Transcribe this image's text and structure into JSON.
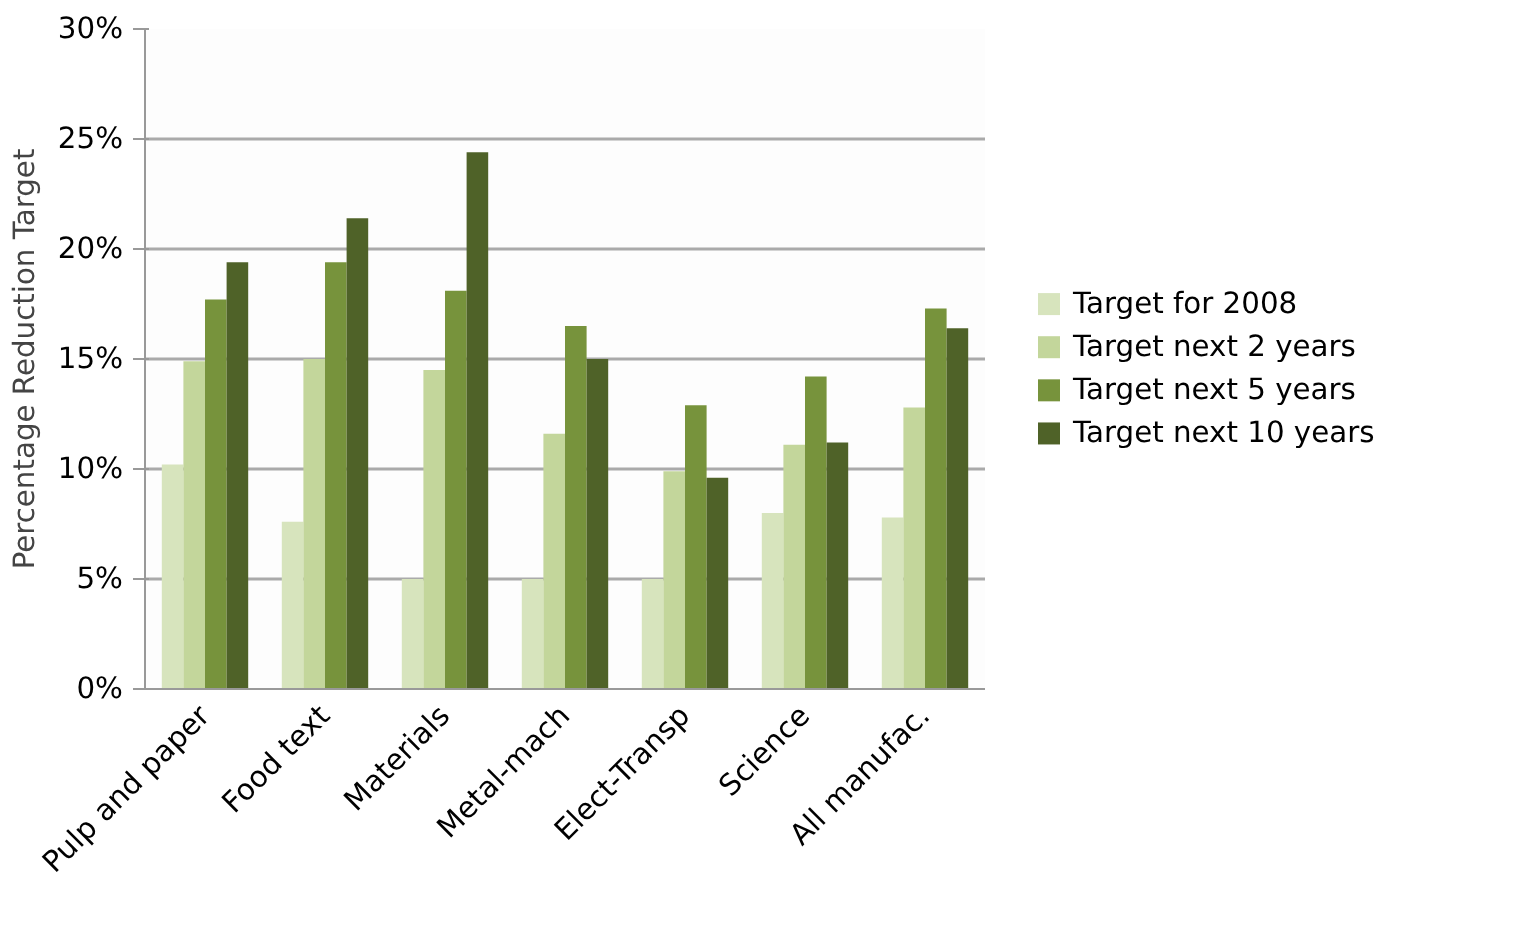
{
  "chart_data": {
    "type": "bar",
    "ylabel": "Percentage Reduction Target",
    "categories": [
      "Pulp and paper",
      "Food text",
      "Materials",
      "Metal-mach",
      "Elect-Transp",
      "Science",
      "All manufac."
    ],
    "series": [
      {
        "name": "Target for 2008",
        "color": "#d7e4bd",
        "values": [
          10.2,
          7.6,
          5.0,
          5.0,
          5.0,
          8.0,
          7.8
        ]
      },
      {
        "name": "Target next 2 years",
        "color": "#c3d69b",
        "values": [
          14.9,
          15.0,
          14.5,
          11.6,
          9.9,
          11.1,
          12.8
        ]
      },
      {
        "name": "Target next 5 years",
        "color": "#77933c",
        "values": [
          17.7,
          19.4,
          18.1,
          16.5,
          12.9,
          14.2,
          17.3
        ]
      },
      {
        "name": "Target next 10 years",
        "color": "#4f6228",
        "values": [
          19.4,
          21.4,
          24.4,
          15.0,
          9.6,
          11.2,
          16.4
        ]
      }
    ],
    "ylim": [
      0,
      30
    ],
    "yticks": [
      {
        "value": 0,
        "label": "0%"
      },
      {
        "value": 5,
        "label": "5%"
      },
      {
        "value": 10,
        "label": "10%"
      },
      {
        "value": 15,
        "label": "15%"
      },
      {
        "value": 20,
        "label": "20%"
      },
      {
        "value": 25,
        "label": "25%"
      },
      {
        "value": 30,
        "label": "30%"
      }
    ],
    "grid": "y",
    "legend": "right"
  }
}
